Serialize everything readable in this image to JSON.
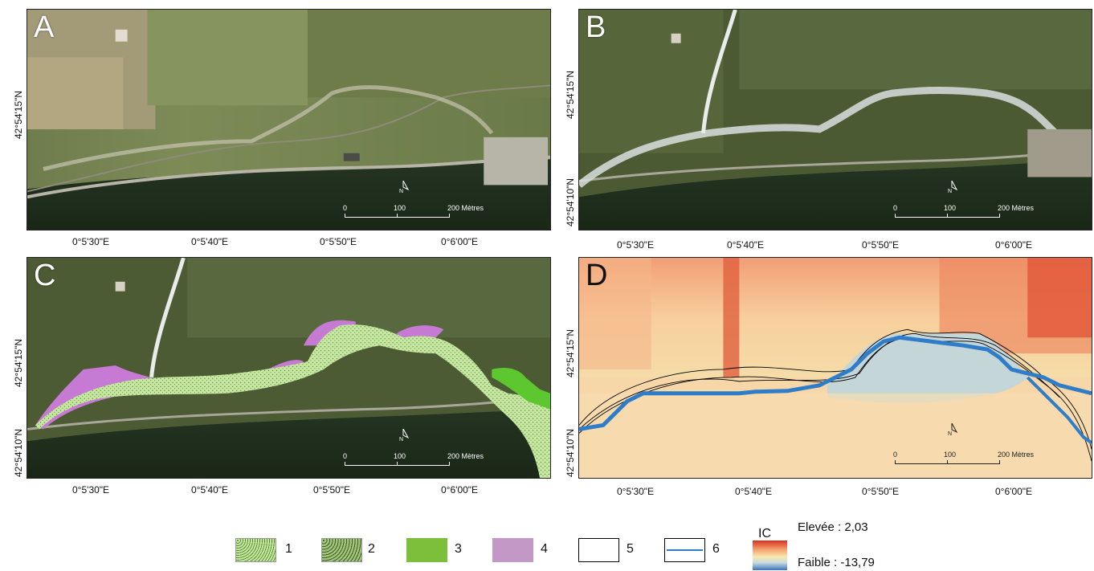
{
  "panels": {
    "a": {
      "label": "A"
    },
    "b": {
      "label": "B"
    },
    "c": {
      "label": "C"
    },
    "d": {
      "label": "D"
    }
  },
  "scale_bar": {
    "zero": "0",
    "mid": "100",
    "end": "200 Mètres"
  },
  "north_arrow": {
    "label": "N"
  },
  "axes": {
    "x_ticks": [
      "0°5'30\"E",
      "0°5'40\"E",
      "0°5'50\"E",
      "0°6'00\"E"
    ],
    "y_tick_top": "42°54'15\"N",
    "y_tick_bottom": "42°54'10\"N"
  },
  "legend": {
    "items": [
      {
        "num": "1",
        "pattern": "fine-green-dots",
        "color": "#c6e6a0"
      },
      {
        "num": "2",
        "pattern": "coarse-green-dots",
        "color": "#a3c57b"
      },
      {
        "num": "3",
        "pattern": "solid",
        "color": "#7cbf3a"
      },
      {
        "num": "4",
        "pattern": "solid",
        "color": "#c397c6"
      },
      {
        "num": "5",
        "pattern": "outline",
        "color": "#000000"
      },
      {
        "num": "6",
        "pattern": "line",
        "color": "#2f7dc8"
      }
    ]
  },
  "ic_legend": {
    "title": "IC",
    "high": "Elevée : 2,03",
    "low": "Faible : -13,79",
    "ramp_colors": [
      "#d7301f",
      "#f4a16d",
      "#f8e8b0",
      "#c8d9df",
      "#3b73b9"
    ]
  }
}
